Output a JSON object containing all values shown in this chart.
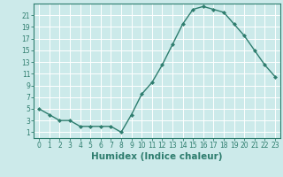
{
  "x": [
    0,
    1,
    2,
    3,
    4,
    5,
    6,
    7,
    8,
    9,
    10,
    11,
    12,
    13,
    14,
    15,
    16,
    17,
    18,
    19,
    20,
    21,
    22,
    23
  ],
  "y": [
    5,
    4,
    3,
    3,
    2,
    2,
    2,
    2,
    1,
    4,
    7.5,
    9.5,
    12.5,
    16,
    19.5,
    22,
    22.5,
    22,
    21.5,
    19.5,
    17.5,
    15,
    12.5,
    10.5
  ],
  "xlabel": "Humidex (Indice chaleur)",
  "ylim": [
    0,
    23
  ],
  "xlim": [
    -0.5,
    23.5
  ],
  "yticks": [
    1,
    3,
    5,
    7,
    9,
    11,
    13,
    15,
    17,
    19,
    21
  ],
  "xticks": [
    0,
    1,
    2,
    3,
    4,
    5,
    6,
    7,
    8,
    9,
    10,
    11,
    12,
    13,
    14,
    15,
    16,
    17,
    18,
    19,
    20,
    21,
    22,
    23
  ],
  "line_color": "#2e7d6e",
  "marker": "D",
  "marker_size": 2,
  "bg_color": "#cceaea",
  "grid_color": "#ffffff",
  "tick_label_fontsize": 5.5,
  "xlabel_fontsize": 7.5
}
